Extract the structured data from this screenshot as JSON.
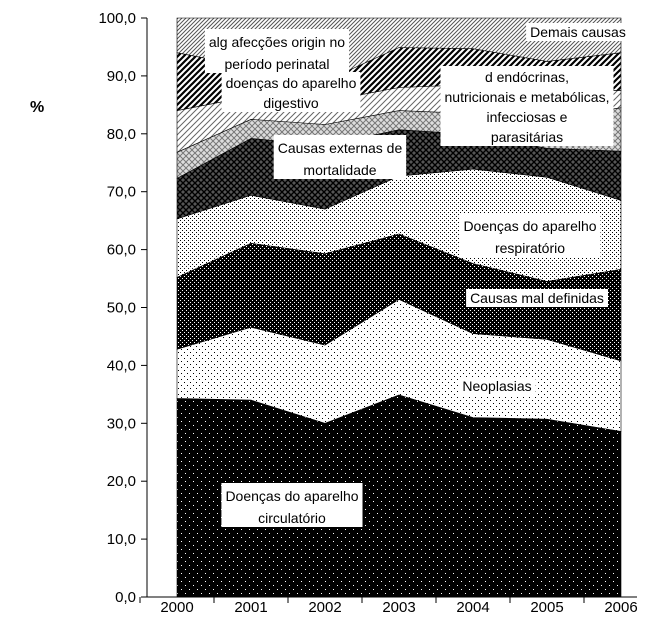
{
  "chart_data": {
    "type": "area",
    "stacked": true,
    "categories": [
      "2000",
      "2001",
      "2002",
      "2003",
      "2004",
      "2005",
      "2006"
    ],
    "ylabel": "%",
    "ylim": [
      0,
      100
    ],
    "yticks": [
      "0,0",
      "10,0",
      "20,0",
      "30,0",
      "40,0",
      "50,0",
      "60,0",
      "70,0",
      "80,0",
      "90,0",
      "100,0"
    ],
    "grid": false,
    "series": [
      {
        "name": "Doenças do aparelho circulatório",
        "values": [
          34.3,
          34.0,
          30.0,
          34.9,
          31.0,
          30.7,
          28.6
        ],
        "pattern": "black-white-dots"
      },
      {
        "name": "Neoplasias",
        "values": [
          8.5,
          12.6,
          13.5,
          16.5,
          14.5,
          13.8,
          12.2
        ],
        "pattern": "white-black-dots"
      },
      {
        "name": "Causas mal definidas",
        "values": [
          12.4,
          14.5,
          15.8,
          11.3,
          12.1,
          10.0,
          15.8
        ],
        "pattern": "dense-dark"
      },
      {
        "name": "Doenças do aparelho respiratório",
        "values": [
          10.1,
          8.3,
          7.7,
          10.0,
          16.3,
          18.0,
          11.9
        ],
        "pattern": "light-dots"
      },
      {
        "name": "Causas externas de mortalidade",
        "values": [
          7.0,
          9.8,
          11.0,
          8.0,
          6.0,
          5.0,
          8.5
        ],
        "pattern": "dark-crosshatch"
      },
      {
        "name": "d endócrinas, nutricionais e metabólicas, infecciosas e parasitárias",
        "values": [
          4.5,
          3.3,
          3.6,
          3.3,
          3.6,
          5.0,
          7.5
        ],
        "pattern": "light-crosshatch"
      },
      {
        "name": "doenças do aparelho digestivo",
        "values": [
          7.2,
          4.0,
          4.0,
          4.0,
          5.0,
          5.0,
          3.0
        ],
        "pattern": "light-diagonal"
      },
      {
        "name": "alg afecções origin no período perinatal",
        "values": [
          10.0,
          5.0,
          3.5,
          6.9,
          6.2,
          5.0,
          6.5
        ],
        "pattern": "dark-diagonal"
      },
      {
        "name": "Demais causas",
        "values": [
          6.0,
          8.5,
          10.9,
          5.1,
          5.3,
          7.5,
          6.0
        ],
        "pattern": "fine-diagonal"
      }
    ]
  }
}
